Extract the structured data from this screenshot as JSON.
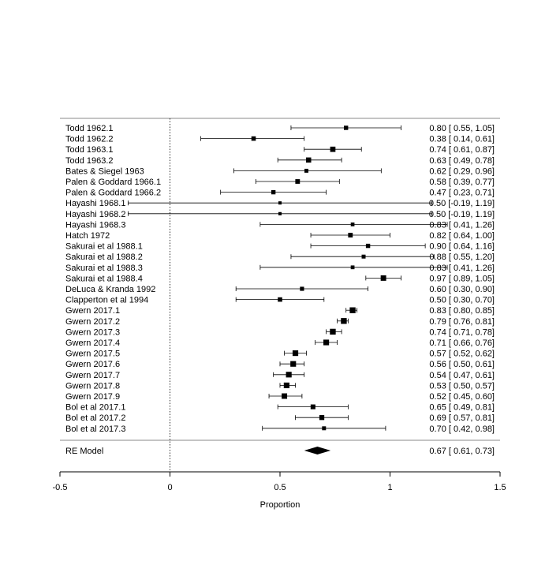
{
  "chart_data": {
    "type": "forest",
    "xlabel": "Proportion",
    "xlim": [
      -0.5,
      1.5
    ],
    "xticks": [
      "-0.5",
      "0",
      "0.5",
      "1",
      "1.5"
    ],
    "reference_line": 0,
    "studies": [
      {
        "label": "Todd 1962.1",
        "est": 0.8,
        "lo": 0.55,
        "hi": 1.05,
        "ci_text": "0.80 [ 0.55, 1.05]",
        "weight": 1.0
      },
      {
        "label": "Todd 1962.2",
        "est": 0.38,
        "lo": 0.14,
        "hi": 0.61,
        "ci_text": "0.38 [ 0.14, 0.61]",
        "weight": 1.1
      },
      {
        "label": "Todd 1963.1",
        "est": 0.74,
        "lo": 0.61,
        "hi": 0.87,
        "ci_text": "0.74 [ 0.61, 0.87]",
        "weight": 1.6
      },
      {
        "label": "Todd 1963.2",
        "est": 0.63,
        "lo": 0.49,
        "hi": 0.78,
        "ci_text": "0.63 [ 0.49, 0.78]",
        "weight": 1.5
      },
      {
        "label": "Bates & Siegel 1963",
        "est": 0.62,
        "lo": 0.29,
        "hi": 0.96,
        "ci_text": "0.62 [ 0.29, 0.96]",
        "weight": 0.8
      },
      {
        "label": "Palen & Goddard 1966.1",
        "est": 0.58,
        "lo": 0.39,
        "hi": 0.77,
        "ci_text": "0.58 [ 0.39, 0.77]",
        "weight": 1.2
      },
      {
        "label": "Palen & Goddard 1966.2",
        "est": 0.47,
        "lo": 0.23,
        "hi": 0.71,
        "ci_text": "0.47 [ 0.23, 0.71]",
        "weight": 1.0
      },
      {
        "label": "Hayashi 1968.1",
        "est": 0.5,
        "lo": -0.19,
        "hi": 1.19,
        "ci_text": "0.50 [-0.19, 1.19]",
        "weight": 0.4
      },
      {
        "label": "Hayashi 1968.2",
        "est": 0.5,
        "lo": -0.19,
        "hi": 1.19,
        "ci_text": "0.50 [-0.19, 1.19]",
        "weight": 0.4
      },
      {
        "label": "Hayashi 1968.3",
        "est": 0.83,
        "lo": 0.41,
        "hi": 1.26,
        "ci_text": "0.83 [ 0.41, 1.26]",
        "weight": 0.7
      },
      {
        "label": "Hatch 1972",
        "est": 0.82,
        "lo": 0.64,
        "hi": 1.0,
        "ci_text": "0.82 [ 0.64, 1.00]",
        "weight": 1.2
      },
      {
        "label": "Sakurai et al 1988.1",
        "est": 0.9,
        "lo": 0.64,
        "hi": 1.16,
        "ci_text": "0.90 [ 0.64, 1.16]",
        "weight": 1.0
      },
      {
        "label": "Sakurai et al 1988.2",
        "est": 0.88,
        "lo": 0.55,
        "hi": 1.2,
        "ci_text": "0.88 [ 0.55, 1.20]",
        "weight": 0.8
      },
      {
        "label": "Sakurai et al 1988.3",
        "est": 0.83,
        "lo": 0.41,
        "hi": 1.26,
        "ci_text": "0.83 [ 0.41, 1.26]",
        "weight": 0.7
      },
      {
        "label": "Sakurai et al 1988.4",
        "est": 0.97,
        "lo": 0.89,
        "hi": 1.05,
        "ci_text": "0.97 [ 0.89, 1.05]",
        "weight": 1.7
      },
      {
        "label": "DeLuca & Kranda 1992",
        "est": 0.6,
        "lo": 0.3,
        "hi": 0.9,
        "ci_text": "0.60 [ 0.30, 0.90]",
        "weight": 0.9
      },
      {
        "label": "Clapperton et al 1994",
        "est": 0.5,
        "lo": 0.3,
        "hi": 0.7,
        "ci_text": "0.50 [ 0.30, 0.70]",
        "weight": 1.1
      },
      {
        "label": "Gwern 2017.1",
        "est": 0.83,
        "lo": 0.8,
        "hi": 0.85,
        "ci_text": "0.83 [ 0.80, 0.85]",
        "weight": 1.9
      },
      {
        "label": "Gwern 2017.2",
        "est": 0.79,
        "lo": 0.76,
        "hi": 0.81,
        "ci_text": "0.79 [ 0.76, 0.81]",
        "weight": 1.9
      },
      {
        "label": "Gwern 2017.3",
        "est": 0.74,
        "lo": 0.71,
        "hi": 0.78,
        "ci_text": "0.74 [ 0.71, 0.78]",
        "weight": 1.9
      },
      {
        "label": "Gwern 2017.4",
        "est": 0.71,
        "lo": 0.66,
        "hi": 0.76,
        "ci_text": "0.71 [ 0.66, 0.76]",
        "weight": 1.8
      },
      {
        "label": "Gwern 2017.5",
        "est": 0.57,
        "lo": 0.52,
        "hi": 0.62,
        "ci_text": "0.57 [ 0.52, 0.62]",
        "weight": 1.8
      },
      {
        "label": "Gwern 2017.6",
        "est": 0.56,
        "lo": 0.5,
        "hi": 0.61,
        "ci_text": "0.56 [ 0.50, 0.61]",
        "weight": 1.8
      },
      {
        "label": "Gwern 2017.7",
        "est": 0.54,
        "lo": 0.47,
        "hi": 0.61,
        "ci_text": "0.54 [ 0.47, 0.61]",
        "weight": 1.8
      },
      {
        "label": "Gwern 2017.8",
        "est": 0.53,
        "lo": 0.5,
        "hi": 0.57,
        "ci_text": "0.53 [ 0.50, 0.57]",
        "weight": 1.8
      },
      {
        "label": "Gwern 2017.9",
        "est": 0.52,
        "lo": 0.45,
        "hi": 0.6,
        "ci_text": "0.52 [ 0.45, 0.60]",
        "weight": 1.7
      },
      {
        "label": "Bol et al 2017.1",
        "est": 0.65,
        "lo": 0.49,
        "hi": 0.81,
        "ci_text": "0.65 [ 0.49, 0.81]",
        "weight": 1.3
      },
      {
        "label": "Bol et al 2017.2",
        "est": 0.69,
        "lo": 0.57,
        "hi": 0.81,
        "ci_text": "0.69 [ 0.57, 0.81]",
        "weight": 1.4
      },
      {
        "label": "Bol et al 2017.3",
        "est": 0.7,
        "lo": 0.42,
        "hi": 0.98,
        "ci_text": "0.70 [ 0.42, 0.98]",
        "weight": 0.8
      }
    ],
    "summary": {
      "label": "RE Model",
      "est": 0.67,
      "lo": 0.61,
      "hi": 0.73,
      "ci_text": "0.67 [ 0.61, 0.73]"
    },
    "colors": {
      "ink": "#000000",
      "rule": "#888888"
    }
  }
}
